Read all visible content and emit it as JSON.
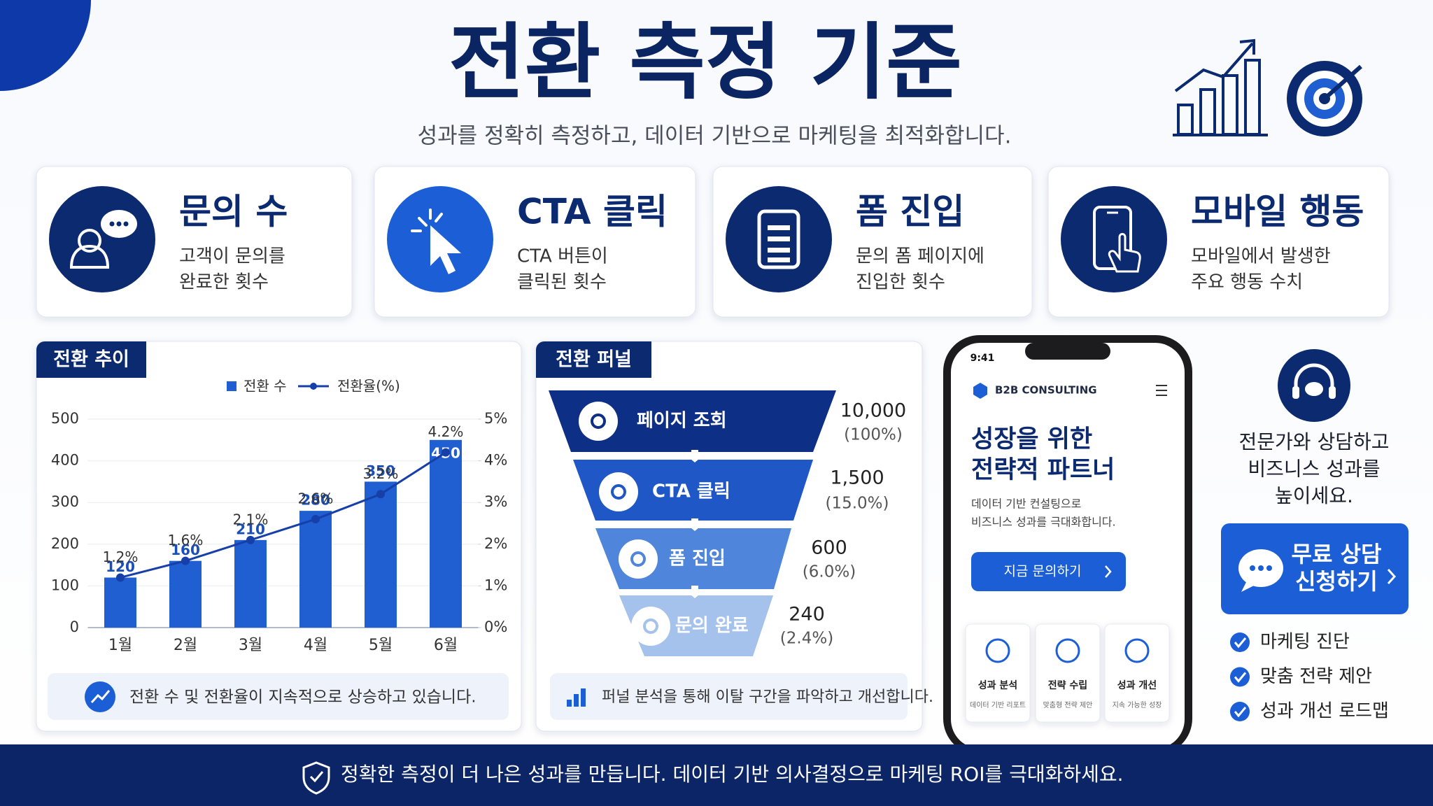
{
  "header": {
    "title": "전환 측정 기준",
    "subtitle": "성과를 정확히 측정하고, 데이터 기반으로 마케팅을 최적화합니다."
  },
  "cards": [
    {
      "title": "문의 수",
      "description": [
        "고객이 문의를",
        "완료한 횟수"
      ]
    },
    {
      "title": "CTA 클릭",
      "description": [
        "CTA 버튼이",
        "클릭된 횟수"
      ]
    },
    {
      "title": "폼 진입",
      "description": [
        "문의 폼 페이지에",
        "진입한 횟수"
      ]
    },
    {
      "title": "모바일 행동",
      "description": [
        "모바일에서 발생한",
        "주요 행동 수치"
      ]
    }
  ],
  "chart_data": {
    "type": "bar",
    "title": "전환 추이",
    "categories": [
      "1월",
      "2월",
      "3월",
      "4월",
      "5월",
      "6월"
    ],
    "series": [
      {
        "name": "전환 수",
        "type": "bar",
        "color": "#1f5fd1",
        "values": [
          120,
          160,
          210,
          280,
          350,
          450
        ]
      },
      {
        "name": "전환율(%)",
        "type": "line",
        "axis": "y2",
        "color": "#163fa8",
        "values": [
          1.2,
          1.6,
          2.1,
          2.6,
          3.2,
          4.2
        ],
        "value_labels": [
          "1.2%",
          "1.6%",
          "2.1%",
          "2.6%",
          "3.2%",
          "4.2%"
        ]
      }
    ],
    "ylim": [
      0,
      500
    ],
    "yticks": [
      0,
      100,
      200,
      300,
      400,
      500
    ],
    "y2lim": [
      0,
      5
    ],
    "y2ticks": [
      {
        "value": 0,
        "label": "0%"
      },
      {
        "value": 1,
        "label": "1%"
      },
      {
        "value": 2,
        "label": "2%"
      },
      {
        "value": 3,
        "label": "3%"
      },
      {
        "value": 4,
        "label": "4%"
      },
      {
        "value": 5,
        "label": "5%"
      }
    ],
    "legend": "top",
    "note": "전환 수 및 전환율이 지속적으로 상승하고 있습니다."
  },
  "funnel": {
    "title": "전환 퍼널",
    "stages": [
      {
        "label": "페이지 조회",
        "value": 10000,
        "value_label": "10,000",
        "percent": 100,
        "percent_label": "(100%)"
      },
      {
        "label": "CTA 클릭",
        "value": 1500,
        "value_label": "1,500",
        "percent": 15.0,
        "percent_label": "(15.0%)"
      },
      {
        "label": "폼 진입",
        "value": 600,
        "value_label": "600",
        "percent": 6.0,
        "percent_label": "(6.0%)"
      },
      {
        "label": "문의 완료",
        "value": 240,
        "value_label": "240",
        "percent": 2.4,
        "percent_label": "(2.4%)"
      }
    ],
    "note": "퍼널 분석을 통해 이탈 구간을 파악하고 개선합니다."
  },
  "phone": {
    "time": "9:41",
    "brand": "B2B CONSULTING",
    "headline": [
      "성장을 위한",
      "전략적 파트너"
    ],
    "description": [
      "데이터 기반 컨설팅으로",
      "비즈니스 성과를 극대화합니다."
    ],
    "button": "지금 문의하기",
    "features": [
      {
        "title": "성과 분석",
        "subtitle": "데이터 기반 리포트"
      },
      {
        "title": "전략 수립",
        "subtitle": "맞춤형 전략 제안"
      },
      {
        "title": "성과 개선",
        "subtitle": "지속 가능한 성장"
      }
    ]
  },
  "cta": {
    "message": [
      "전문가와 상담하고",
      "비즈니스 성과를",
      "높이세요."
    ],
    "button": [
      "무료 상담",
      "신청하기"
    ],
    "checklist": [
      "마케팅 진단",
      "맞춤 전략 제안",
      "성과 개선 로드맵"
    ]
  },
  "footer": {
    "text": "정확한 측정이 더 나은 성과를 만듭니다. 데이터 기반 의사결정으로 마케팅 ROI를 극대화하세요."
  }
}
